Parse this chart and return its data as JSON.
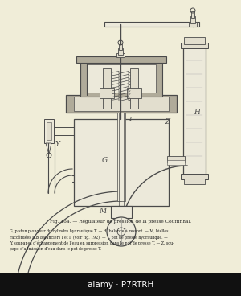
{
  "bg_color": "#f0edd8",
  "figure_width": 3.0,
  "figure_height": 3.68,
  "caption_title": "Fig. 164. — Régulateur de pression de la presse Couffinhal.",
  "caption_body": "G, piston plongeur du cylindre hydraulique T. — H, balance à ressort. — M, bielles\nraccôrdées aux balanciers I et I. (voir fig. 192). — T, pot de presse hydraulique. —\nY, soupapes d’échappement de l’eau en surpression dans le pot de presse T. — Z, sou-\npape d’admission d’eau dans le pot de presse T.",
  "watermark": "alamy · P7RTRH",
  "draw_color": "#4a4a4a",
  "hatch_fill": "#b0ab9a",
  "body_fill": "#e2dece",
  "light_fill": "#ece9da"
}
